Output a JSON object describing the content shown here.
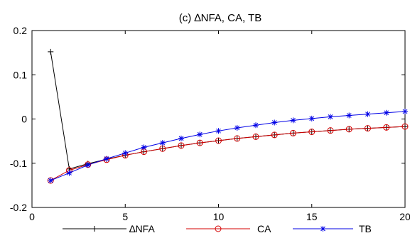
{
  "chart_data": {
    "type": "line",
    "title": "(c) ∆NFA, CA, TB",
    "xlabel": "",
    "ylabel": "",
    "xlim": [
      0,
      20
    ],
    "ylim": [
      -0.2,
      0.2
    ],
    "x_ticks": [
      0,
      5,
      10,
      15,
      20
    ],
    "y_ticks": [
      -0.2,
      -0.1,
      0,
      0.1,
      0.2
    ],
    "x_tick_labels": [
      "0",
      "5",
      "10",
      "15",
      "20"
    ],
    "y_tick_labels": [
      "-0.2",
      "-0.1",
      "0",
      "0.1",
      "0.2"
    ],
    "grid": false,
    "legend_position": "bottom",
    "x": [
      1,
      2,
      3,
      4,
      5,
      6,
      7,
      8,
      9,
      10,
      11,
      12,
      13,
      14,
      15,
      16,
      17,
      18,
      19,
      20
    ],
    "series": [
      {
        "name": "∆NFA",
        "color": "#000000",
        "marker": "plus",
        "values": [
          0.152,
          -0.113,
          -0.101,
          -0.091,
          -0.082,
          -0.074,
          -0.067,
          -0.06,
          -0.054,
          -0.049,
          -0.044,
          -0.04,
          -0.036,
          -0.032,
          -0.029,
          -0.026,
          -0.023,
          -0.021,
          -0.019,
          -0.017
        ]
      },
      {
        "name": "CA",
        "color": "#d40000",
        "marker": "circle",
        "values": [
          -0.139,
          -0.116,
          -0.103,
          -0.092,
          -0.082,
          -0.074,
          -0.067,
          -0.06,
          -0.054,
          -0.049,
          -0.044,
          -0.04,
          -0.036,
          -0.032,
          -0.029,
          -0.026,
          -0.023,
          -0.021,
          -0.019,
          -0.017
        ]
      },
      {
        "name": "TB",
        "color": "#0000e6",
        "marker": "star",
        "values": [
          -0.139,
          -0.122,
          -0.104,
          -0.09,
          -0.077,
          -0.064,
          -0.054,
          -0.044,
          -0.035,
          -0.027,
          -0.02,
          -0.014,
          -0.008,
          -0.003,
          0.001,
          0.005,
          0.008,
          0.011,
          0.014,
          0.017
        ]
      }
    ]
  }
}
